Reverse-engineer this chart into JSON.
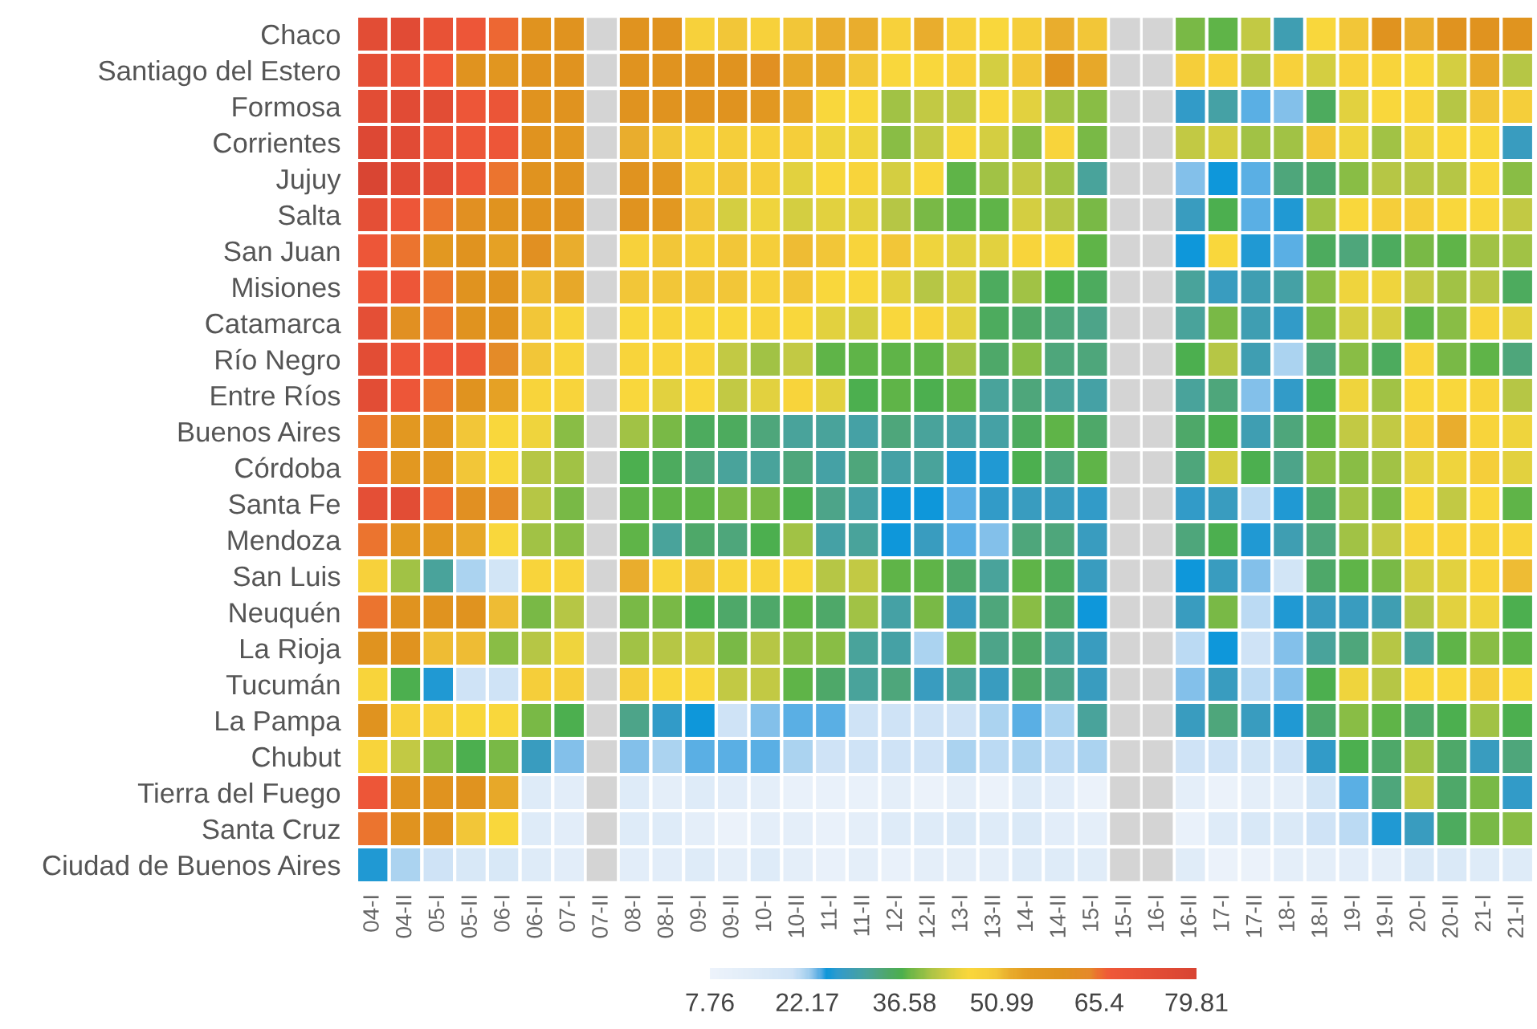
{
  "chart_data": {
    "type": "heatmap",
    "categories": [
      "04-I",
      "04-II",
      "05-I",
      "05-II",
      "06-I",
      "06-II",
      "07-I",
      "07-II",
      "08-I",
      "08-II",
      "09-I",
      "09-II",
      "10-I",
      "10-II",
      "11-I",
      "11-II",
      "12-I",
      "12-II",
      "13-I",
      "13-II",
      "14-I",
      "14-II",
      "15-I",
      "15-II",
      "16-I",
      "16-II",
      "17-I",
      "17-II",
      "18-I",
      "18-II",
      "19-I",
      "19-II",
      "20-I",
      "20-II",
      "21-I",
      "21-II"
    ],
    "y_categories": [
      "Chaco",
      "Santiago del Estero",
      "Formosa",
      "Corrientes",
      "Jujuy",
      "Salta",
      "San Juan",
      "Misiones",
      "Catamarca",
      "Río Negro",
      "Entre Ríos",
      "Buenos Aires",
      "Córdoba",
      "Santa Fe",
      "Mendoza",
      "San Luis",
      "Neuquén",
      "La Rioja",
      "Tucumán",
      "La Pampa",
      "Chubut",
      "Tierra del Fuego",
      "Santa Cruz",
      "Ciudad de Buenos Aires"
    ],
    "cells": [
      [
        74,
        75,
        71,
        68,
        66,
        60,
        60,
        null,
        60,
        60,
        48,
        50,
        48,
        50,
        52,
        52,
        48,
        52,
        48,
        46,
        49,
        52,
        50,
        null,
        null,
        38,
        37,
        42,
        29,
        46,
        50,
        60,
        52,
        60,
        60,
        59
      ],
      [
        73,
        70,
        67,
        60,
        58,
        60,
        60,
        null,
        60,
        60,
        60,
        60,
        61,
        53,
        53,
        50,
        46,
        46,
        48,
        43,
        50,
        60,
        53,
        null,
        null,
        49,
        48,
        41,
        48,
        43,
        48,
        47,
        46,
        43,
        53,
        41
      ],
      [
        74,
        75,
        74,
        68,
        69,
        60,
        60,
        null,
        60,
        60,
        60,
        60,
        57,
        53,
        46,
        46,
        40,
        42,
        42,
        46,
        44,
        40,
        39,
        null,
        null,
        27,
        30,
        24,
        23,
        35,
        44,
        46,
        47,
        41,
        50,
        49
      ],
      [
        77,
        75,
        70,
        68,
        68,
        60,
        57,
        null,
        52,
        50,
        48,
        49,
        48,
        49,
        45,
        45,
        39,
        42,
        46,
        43,
        39,
        47,
        38,
        null,
        null,
        42,
        43,
        40,
        40,
        50,
        45,
        40,
        45,
        46,
        46,
        28
      ],
      [
        79,
        75,
        74,
        68,
        65,
        60,
        60,
        null,
        60,
        57,
        49,
        50,
        49,
        44,
        46,
        47,
        43,
        46,
        37,
        40,
        42,
        40,
        31,
        null,
        null,
        23,
        25,
        24,
        33,
        34,
        39,
        41,
        41,
        41,
        46,
        39
      ],
      [
        73,
        68,
        65,
        61,
        60,
        60,
        60,
        null,
        60,
        57,
        50,
        43,
        45,
        43,
        44,
        44,
        41,
        38,
        37,
        37,
        43,
        41,
        38,
        null,
        null,
        28,
        36,
        24,
        26,
        40,
        46,
        49,
        49,
        46,
        46,
        42
      ],
      [
        68,
        65,
        57,
        60,
        54,
        61,
        52,
        null,
        48,
        50,
        49,
        50,
        49,
        51,
        50,
        47,
        50,
        45,
        44,
        44,
        47,
        46,
        37,
        null,
        null,
        25,
        46,
        26,
        24,
        35,
        33,
        35,
        38,
        37,
        40,
        40
      ],
      [
        68,
        68,
        65,
        60,
        60,
        51,
        53,
        null,
        50,
        50,
        50,
        50,
        48,
        50,
        46,
        46,
        44,
        41,
        43,
        35,
        40,
        36,
        35,
        null,
        null,
        31,
        28,
        29,
        30,
        39,
        45,
        45,
        42,
        40,
        41,
        35
      ],
      [
        73,
        61,
        65,
        60,
        60,
        50,
        47,
        null,
        46,
        47,
        46,
        46,
        47,
        46,
        44,
        43,
        46,
        47,
        44,
        35,
        34,
        33,
        32,
        null,
        null,
        31,
        38,
        29,
        27,
        38,
        43,
        43,
        37,
        39,
        47,
        44
      ],
      [
        74,
        68,
        68,
        68,
        63,
        50,
        47,
        null,
        47,
        47,
        47,
        42,
        40,
        42,
        37,
        37,
        37,
        37,
        40,
        34,
        39,
        33,
        33,
        null,
        null,
        36,
        41,
        29,
        22,
        33,
        39,
        35,
        47,
        38,
        37,
        33
      ],
      [
        74,
        68,
        65,
        60,
        54,
        47,
        47,
        null,
        46,
        44,
        46,
        42,
        44,
        47,
        44,
        36,
        37,
        36,
        37,
        31,
        33,
        31,
        30,
        null,
        null,
        31,
        33,
        23,
        27,
        36,
        45,
        40,
        46,
        46,
        47,
        41
      ],
      [
        65,
        57,
        57,
        50,
        46,
        45,
        39,
        null,
        40,
        38,
        35,
        35,
        33,
        31,
        31,
        30,
        33,
        31,
        30,
        30,
        35,
        37,
        34,
        null,
        null,
        34,
        36,
        29,
        33,
        37,
        42,
        42,
        49,
        52,
        47,
        45
      ],
      [
        66,
        57,
        57,
        50,
        46,
        41,
        40,
        null,
        36,
        35,
        33,
        31,
        31,
        33,
        30,
        33,
        30,
        31,
        26,
        26,
        36,
        33,
        37,
        null,
        null,
        33,
        43,
        36,
        32,
        39,
        39,
        40,
        44,
        45,
        49,
        44
      ],
      [
        73,
        74,
        66,
        61,
        63,
        41,
        38,
        null,
        37,
        37,
        37,
        38,
        38,
        36,
        32,
        30,
        25,
        25,
        24,
        27,
        28,
        28,
        27,
        null,
        null,
        27,
        28,
        21,
        26,
        34,
        40,
        38,
        46,
        42,
        46,
        37
      ],
      [
        65,
        57,
        57,
        53,
        46,
        40,
        39,
        null,
        37,
        31,
        34,
        33,
        36,
        40,
        30,
        31,
        25,
        28,
        24,
        23,
        33,
        33,
        28,
        null,
        null,
        33,
        36,
        26,
        29,
        33,
        40,
        42,
        47,
        47,
        47,
        47
      ],
      [
        48,
        40,
        31,
        22,
        19,
        47,
        47,
        null,
        52,
        47,
        50,
        47,
        47,
        46,
        41,
        42,
        37,
        37,
        34,
        31,
        37,
        35,
        28,
        null,
        null,
        25,
        28,
        23,
        19,
        34,
        37,
        38,
        43,
        44,
        47,
        51
      ],
      [
        65,
        60,
        60,
        60,
        51,
        38,
        41,
        null,
        38,
        38,
        36,
        34,
        34,
        37,
        34,
        40,
        30,
        38,
        28,
        33,
        39,
        34,
        25,
        null,
        null,
        28,
        38,
        21,
        26,
        28,
        28,
        29,
        41,
        44,
        45,
        36
      ],
      [
        60,
        60,
        51,
        51,
        39,
        41,
        45,
        null,
        40,
        41,
        42,
        38,
        41,
        39,
        39,
        31,
        30,
        22,
        38,
        32,
        34,
        31,
        28,
        null,
        null,
        21,
        25,
        20,
        23,
        31,
        33,
        41,
        31,
        37,
        39,
        37
      ],
      [
        47,
        36,
        26,
        20,
        20,
        49,
        49,
        null,
        49,
        46,
        46,
        42,
        42,
        37,
        34,
        31,
        33,
        28,
        31,
        28,
        34,
        32,
        28,
        null,
        null,
        23,
        28,
        21,
        23,
        36,
        45,
        41,
        46,
        46,
        49,
        46
      ],
      [
        60,
        48,
        48,
        46,
        46,
        38,
        36,
        null,
        32,
        27,
        25,
        20,
        23,
        24,
        24,
        20,
        20,
        20,
        20,
        22,
        24,
        22,
        31,
        null,
        null,
        28,
        33,
        28,
        26,
        34,
        39,
        37,
        34,
        36,
        40,
        36
      ],
      [
        47,
        42,
        39,
        36,
        38,
        28,
        23,
        null,
        23,
        22,
        24,
        24,
        24,
        22,
        20,
        20,
        20,
        20,
        22,
        21,
        22,
        21,
        22,
        null,
        null,
        20,
        20,
        19,
        20,
        27,
        36,
        34,
        40,
        34,
        28,
        33
      ],
      [
        68,
        60,
        60,
        60,
        53,
        15,
        13,
        null,
        15,
        12,
        15,
        13,
        12,
        10,
        10,
        10,
        12,
        9,
        12,
        9,
        15,
        13,
        9,
        null,
        null,
        12,
        9,
        12,
        12,
        19,
        24,
        33,
        42,
        34,
        38,
        27
      ],
      [
        65,
        60,
        60,
        50,
        46,
        15,
        13,
        null,
        15,
        15,
        12,
        9,
        12,
        12,
        10,
        12,
        15,
        15,
        16,
        15,
        16,
        13,
        12,
        null,
        null,
        10,
        15,
        17,
        16,
        20,
        21,
        26,
        28,
        35,
        38,
        39
      ],
      [
        26,
        22,
        20,
        17,
        17,
        15,
        13,
        null,
        13,
        13,
        15,
        12,
        15,
        12,
        10,
        12,
        10,
        12,
        12,
        12,
        15,
        15,
        14,
        null,
        null,
        14,
        9,
        9,
        12,
        12,
        13,
        12,
        16,
        16,
        15,
        15
      ]
    ],
    "clim": [
      7.76,
      79.81
    ],
    "cticks": [
      7.76,
      22.17,
      36.58,
      50.99,
      65.4,
      79.81
    ]
  }
}
